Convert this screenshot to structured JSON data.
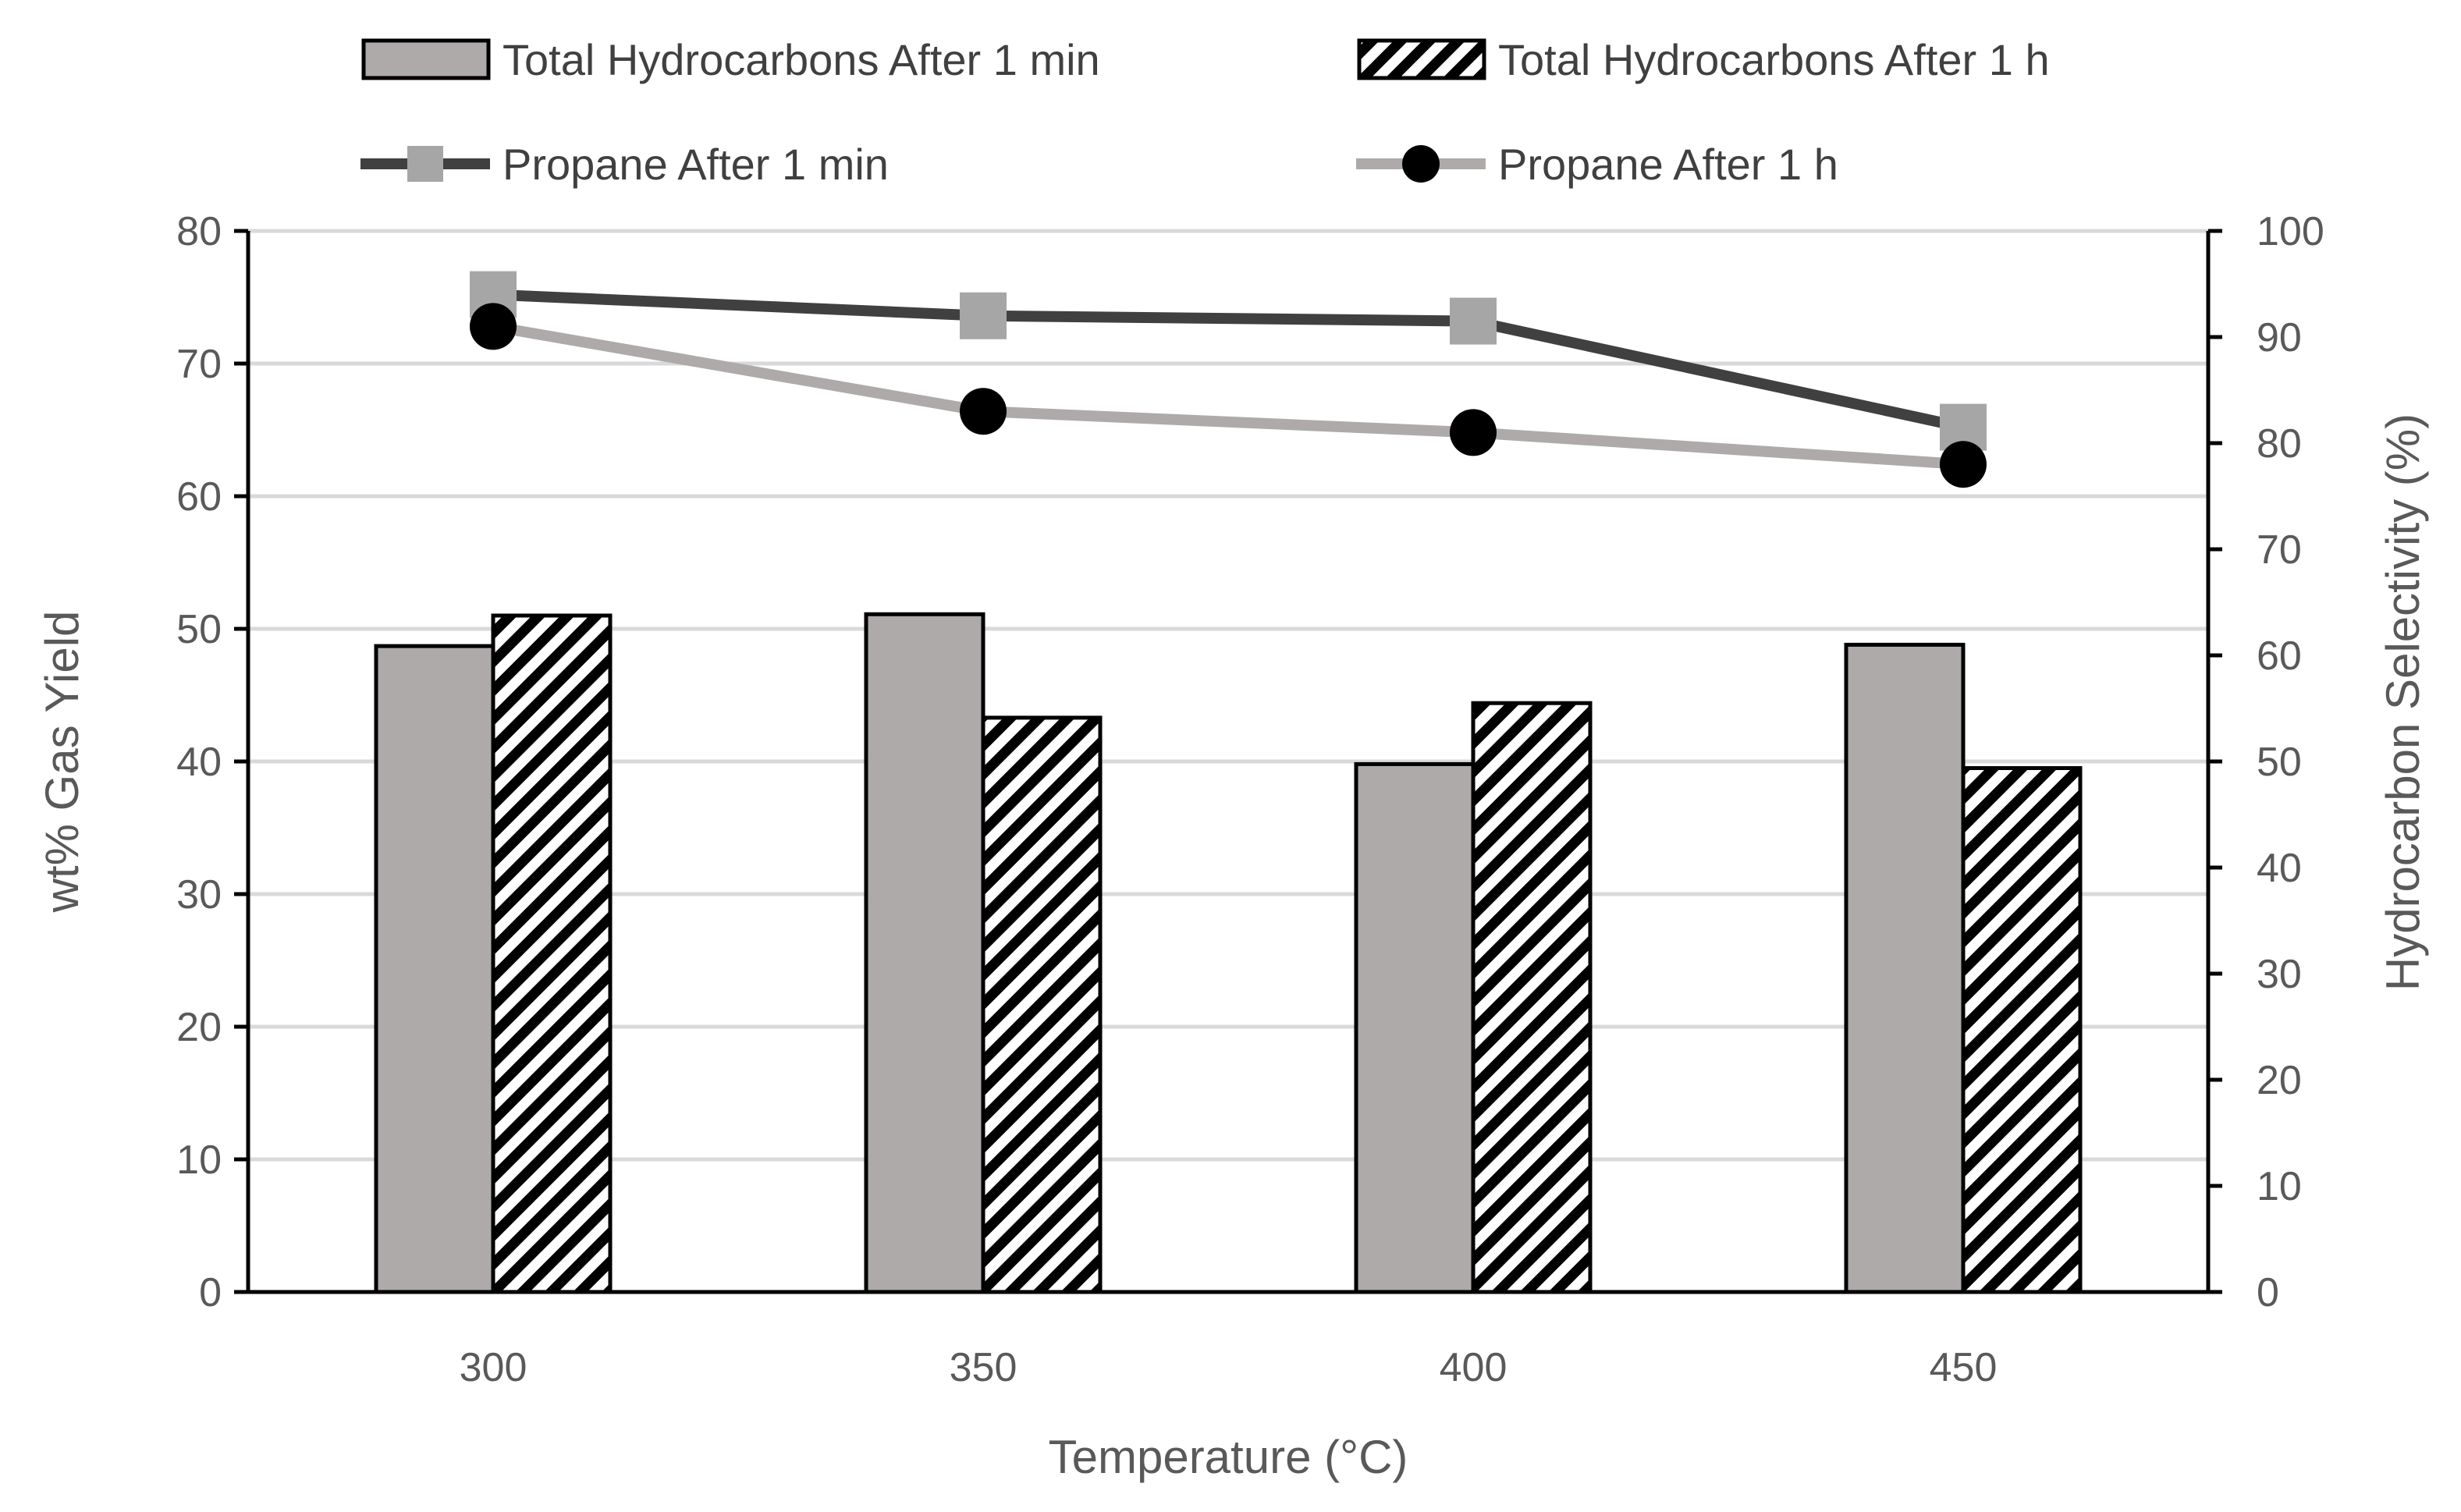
{
  "chart_data": {
    "type": "bar+line",
    "xlabel": "Temperature (°C)",
    "ylabel": "wt% Gas Yield",
    "y2label": "Hydrocarbon  Selectivity (%)",
    "ylim": [
      0,
      80
    ],
    "y2lim": [
      0,
      100
    ],
    "yticks": [
      "0",
      "10",
      "20",
      "30",
      "40",
      "50",
      "60",
      "70",
      "80"
    ],
    "y2ticks": [
      "0",
      "10",
      "20",
      "30",
      "40",
      "50",
      "60",
      "70",
      "80",
      "90",
      "100"
    ],
    "categories": [
      "300",
      "350",
      "400",
      "450"
    ],
    "grid": true,
    "legend_position": "top",
    "bar_series": [
      {
        "name": "Total Hydrocarbons After 1 min",
        "values": [
          48.7,
          51.1,
          39.8,
          48.8
        ],
        "fill": "#aeaaaa",
        "pattern": "solid"
      },
      {
        "name": "Total Hydrocarbons After 1 h",
        "values": [
          51.0,
          43.3,
          44.4,
          39.5
        ],
        "fill": "#ffffff",
        "pattern": "diagonal-stripes"
      }
    ],
    "line_series": [
      {
        "name": "Propane After 1 min",
        "axis": "right",
        "values": [
          94.0,
          92.0,
          91.5,
          81.5
        ],
        "color": "#404040",
        "marker": "square",
        "marker_color": "#a6a6a6"
      },
      {
        "name": "Propane After 1 h",
        "axis": "right",
        "values": [
          91.0,
          83.0,
          81.0,
          78.0
        ],
        "color": "#aeaaaa",
        "marker": "circle",
        "marker_color": "#000000"
      }
    ]
  }
}
